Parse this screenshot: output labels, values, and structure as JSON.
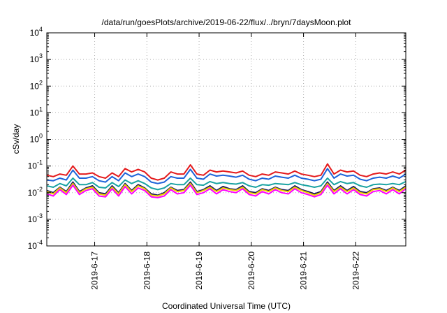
{
  "chart_data": {
    "type": "line",
    "title": "/data/run/goesPlots/archive/2019-06-22/flux/../bryn/7daysMoon.plot",
    "xlabel": "Coordinated Universal Time (UTC)",
    "ylabel": "cSv/day",
    "yscale": "log",
    "ylim": [
      0.0001,
      10000
    ],
    "y_ticks": [
      {
        "base": "10",
        "exp": "-4"
      },
      {
        "base": "10",
        "exp": "-3"
      },
      {
        "base": "10",
        "exp": "-2"
      },
      {
        "base": "10",
        "exp": "-1"
      },
      {
        "base": "10",
        "exp": "0"
      },
      {
        "base": "10",
        "exp": "1"
      },
      {
        "base": "10",
        "exp": "2"
      },
      {
        "base": "10",
        "exp": "3"
      },
      {
        "base": "10",
        "exp": "4"
      }
    ],
    "xlim": [
      "2019-06-16T02:00",
      "2019-06-22T23:00"
    ],
    "x_ticks": [
      "2019-6-17",
      "2019-6-18",
      "2019-6-19",
      "2019-6-20",
      "2019-6-21",
      "2019-6-22"
    ],
    "grid": true,
    "x": [
      "2019-06-16T02:00",
      "2019-06-16T05:00",
      "2019-06-16T08:00",
      "2019-06-16T11:00",
      "2019-06-16T14:00",
      "2019-06-16T17:00",
      "2019-06-16T20:00",
      "2019-06-16T23:00",
      "2019-06-17T02:00",
      "2019-06-17T05:00",
      "2019-06-17T08:00",
      "2019-06-17T11:00",
      "2019-06-17T14:00",
      "2019-06-17T17:00",
      "2019-06-17T20:00",
      "2019-06-17T23:00",
      "2019-06-18T02:00",
      "2019-06-18T05:00",
      "2019-06-18T08:00",
      "2019-06-18T11:00",
      "2019-06-18T14:00",
      "2019-06-18T17:00",
      "2019-06-18T20:00",
      "2019-06-18T23:00",
      "2019-06-19T02:00",
      "2019-06-19T05:00",
      "2019-06-19T08:00",
      "2019-06-19T11:00",
      "2019-06-19T14:00",
      "2019-06-19T17:00",
      "2019-06-19T20:00",
      "2019-06-19T23:00",
      "2019-06-20T02:00",
      "2019-06-20T05:00",
      "2019-06-20T08:00",
      "2019-06-20T11:00",
      "2019-06-20T14:00",
      "2019-06-20T17:00",
      "2019-06-20T20:00",
      "2019-06-20T23:00",
      "2019-06-21T02:00",
      "2019-06-21T05:00",
      "2019-06-21T08:00",
      "2019-06-21T11:00",
      "2019-06-21T14:00",
      "2019-06-21T17:00",
      "2019-06-21T20:00",
      "2019-06-21T23:00",
      "2019-06-22T02:00",
      "2019-06-22T05:00",
      "2019-06-22T08:00",
      "2019-06-22T11:00",
      "2019-06-22T14:00",
      "2019-06-22T17:00",
      "2019-06-22T20:00",
      "2019-06-22T23:00"
    ],
    "series": [
      {
        "color": "#e41a1c",
        "values": [
          0.045,
          0.04,
          0.05,
          0.045,
          0.1,
          0.05,
          0.05,
          0.055,
          0.04,
          0.035,
          0.055,
          0.04,
          0.08,
          0.06,
          0.075,
          0.06,
          0.035,
          0.03,
          0.035,
          0.06,
          0.05,
          0.05,
          0.11,
          0.05,
          0.045,
          0.07,
          0.06,
          0.065,
          0.06,
          0.055,
          0.065,
          0.045,
          0.04,
          0.05,
          0.045,
          0.06,
          0.055,
          0.05,
          0.065,
          0.05,
          0.045,
          0.04,
          0.045,
          0.12,
          0.05,
          0.07,
          0.06,
          0.065,
          0.045,
          0.04,
          0.05,
          0.055,
          0.05,
          0.06,
          0.05,
          0.07
        ]
      },
      {
        "color": "#1e63d9",
        "values": [
          0.03,
          0.028,
          0.035,
          0.03,
          0.07,
          0.035,
          0.035,
          0.04,
          0.028,
          0.025,
          0.04,
          0.028,
          0.055,
          0.04,
          0.05,
          0.04,
          0.025,
          0.022,
          0.025,
          0.04,
          0.035,
          0.035,
          0.075,
          0.035,
          0.032,
          0.05,
          0.042,
          0.045,
          0.042,
          0.038,
          0.045,
          0.032,
          0.028,
          0.035,
          0.032,
          0.042,
          0.038,
          0.035,
          0.045,
          0.035,
          0.032,
          0.028,
          0.032,
          0.08,
          0.035,
          0.05,
          0.042,
          0.045,
          0.032,
          0.028,
          0.035,
          0.038,
          0.035,
          0.042,
          0.035,
          0.05
        ]
      },
      {
        "color": "#1aa3a3",
        "values": [
          0.018,
          0.016,
          0.022,
          0.018,
          0.035,
          0.02,
          0.02,
          0.024,
          0.016,
          0.015,
          0.024,
          0.017,
          0.03,
          0.022,
          0.028,
          0.022,
          0.015,
          0.013,
          0.015,
          0.022,
          0.02,
          0.02,
          0.035,
          0.02,
          0.019,
          0.026,
          0.022,
          0.024,
          0.022,
          0.021,
          0.024,
          0.018,
          0.016,
          0.02,
          0.019,
          0.022,
          0.021,
          0.02,
          0.024,
          0.02,
          0.018,
          0.016,
          0.018,
          0.035,
          0.02,
          0.026,
          0.022,
          0.024,
          0.018,
          0.016,
          0.02,
          0.021,
          0.02,
          0.022,
          0.02,
          0.026
        ]
      },
      {
        "color": "#1a1a5e",
        "values": [
          0.012,
          0.01,
          0.016,
          0.011,
          0.025,
          0.011,
          0.015,
          0.018,
          0.01,
          0.009,
          0.018,
          0.01,
          0.022,
          0.012,
          0.02,
          0.015,
          0.009,
          0.008,
          0.01,
          0.016,
          0.012,
          0.013,
          0.025,
          0.011,
          0.013,
          0.018,
          0.012,
          0.017,
          0.014,
          0.013,
          0.018,
          0.011,
          0.01,
          0.014,
          0.012,
          0.016,
          0.013,
          0.012,
          0.018,
          0.013,
          0.011,
          0.009,
          0.011,
          0.025,
          0.012,
          0.018,
          0.012,
          0.017,
          0.011,
          0.01,
          0.014,
          0.015,
          0.012,
          0.016,
          0.012,
          0.018
        ]
      },
      {
        "color": "#f0d000",
        "values": [
          0.011,
          0.009,
          0.015,
          0.01,
          0.022,
          0.01,
          0.014,
          0.016,
          0.009,
          0.008,
          0.016,
          0.009,
          0.02,
          0.011,
          0.018,
          0.014,
          0.008,
          0.0075,
          0.009,
          0.015,
          0.011,
          0.012,
          0.022,
          0.01,
          0.012,
          0.016,
          0.011,
          0.015,
          0.013,
          0.012,
          0.016,
          0.01,
          0.009,
          0.013,
          0.011,
          0.015,
          0.012,
          0.011,
          0.016,
          0.012,
          0.01,
          0.008,
          0.01,
          0.022,
          0.011,
          0.016,
          0.011,
          0.015,
          0.01,
          0.009,
          0.013,
          0.014,
          0.011,
          0.015,
          0.011,
          0.016
        ]
      },
      {
        "color": "#ff00ff",
        "values": [
          0.009,
          0.0075,
          0.013,
          0.0085,
          0.019,
          0.0085,
          0.012,
          0.014,
          0.0075,
          0.007,
          0.014,
          0.0075,
          0.017,
          0.009,
          0.015,
          0.012,
          0.007,
          0.0065,
          0.0075,
          0.013,
          0.009,
          0.01,
          0.019,
          0.0085,
          0.01,
          0.014,
          0.009,
          0.013,
          0.011,
          0.01,
          0.014,
          0.0085,
          0.0075,
          0.011,
          0.009,
          0.013,
          0.01,
          0.009,
          0.014,
          0.01,
          0.0085,
          0.007,
          0.0085,
          0.019,
          0.009,
          0.014,
          0.009,
          0.013,
          0.0085,
          0.0075,
          0.011,
          0.012,
          0.009,
          0.013,
          0.009,
          0.014
        ]
      }
    ]
  }
}
